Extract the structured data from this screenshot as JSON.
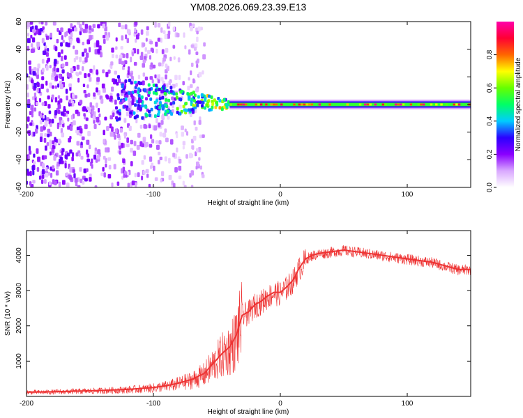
{
  "figure": {
    "title": "YM08.2026.069.23.39.E13"
  },
  "chart_data": [
    {
      "type": "heatmap",
      "xlabel": "Height of straight line (km)",
      "ylabel": "Frequency (Hz)",
      "xlim": [
        -200,
        150
      ],
      "ylim": [
        -60,
        60
      ],
      "xticks": [
        -200,
        -100,
        0,
        100
      ],
      "yticks": [
        -60,
        -40,
        -20,
        0,
        20,
        40,
        60
      ],
      "colorbar": {
        "label": "Normalized spectral amplitude",
        "range": [
          0,
          1
        ],
        "ticks": [
          "0.0",
          "0.2",
          "0.4",
          "0.6",
          "0.8"
        ],
        "colors": [
          "#ffffff",
          "#d9a8ff",
          "#8a00ff",
          "#2b00ff",
          "#00ccff",
          "#00ff66",
          "#66ff00",
          "#ffff00",
          "#ff6600",
          "#ff0033",
          "#ff00aa"
        ]
      },
      "features": [
        {
          "name": "diffuse noise",
          "x_range": [
            -200,
            -70
          ],
          "freq_range": [
            -60,
            60
          ],
          "amplitude": 0.12
        },
        {
          "name": "emerging signal",
          "x_range": [
            -130,
            -40
          ],
          "freq_center": 5,
          "amplitude": 0.3
        },
        {
          "name": "narrowband line",
          "x_range": [
            -40,
            150
          ],
          "freq_center": 0,
          "amplitude": 0.9
        }
      ]
    },
    {
      "type": "line",
      "xlabel": "Height of straight line (km)",
      "ylabel": "SNR (10 * v/v)",
      "xlim": [
        -200,
        150
      ],
      "ylim": [
        0,
        4700
      ],
      "xticks": [
        -200,
        -100,
        0,
        100
      ],
      "yticks": [
        1000,
        2000,
        3000,
        4000
      ],
      "color": "#ee3333",
      "series": [
        {
          "name": "SNR",
          "x": [
            -200,
            -180,
            -160,
            -140,
            -120,
            -100,
            -90,
            -80,
            -70,
            -60,
            -55,
            -50,
            -45,
            -40,
            -35,
            -30,
            -25,
            -20,
            -15,
            -10,
            -5,
            0,
            5,
            10,
            15,
            20,
            25,
            30,
            40,
            50,
            60,
            70,
            80,
            90,
            100,
            110,
            120,
            130,
            140,
            150
          ],
          "y": [
            120,
            130,
            150,
            170,
            200,
            250,
            300,
            380,
            480,
            650,
            850,
            1050,
            1250,
            1400,
            1700,
            2300,
            2400,
            2600,
            2700,
            2850,
            2950,
            2950,
            3100,
            3300,
            3650,
            3900,
            4000,
            4050,
            4100,
            4150,
            4100,
            4050,
            4000,
            3950,
            3900,
            3850,
            3800,
            3700,
            3600,
            3600
          ]
        }
      ]
    }
  ]
}
